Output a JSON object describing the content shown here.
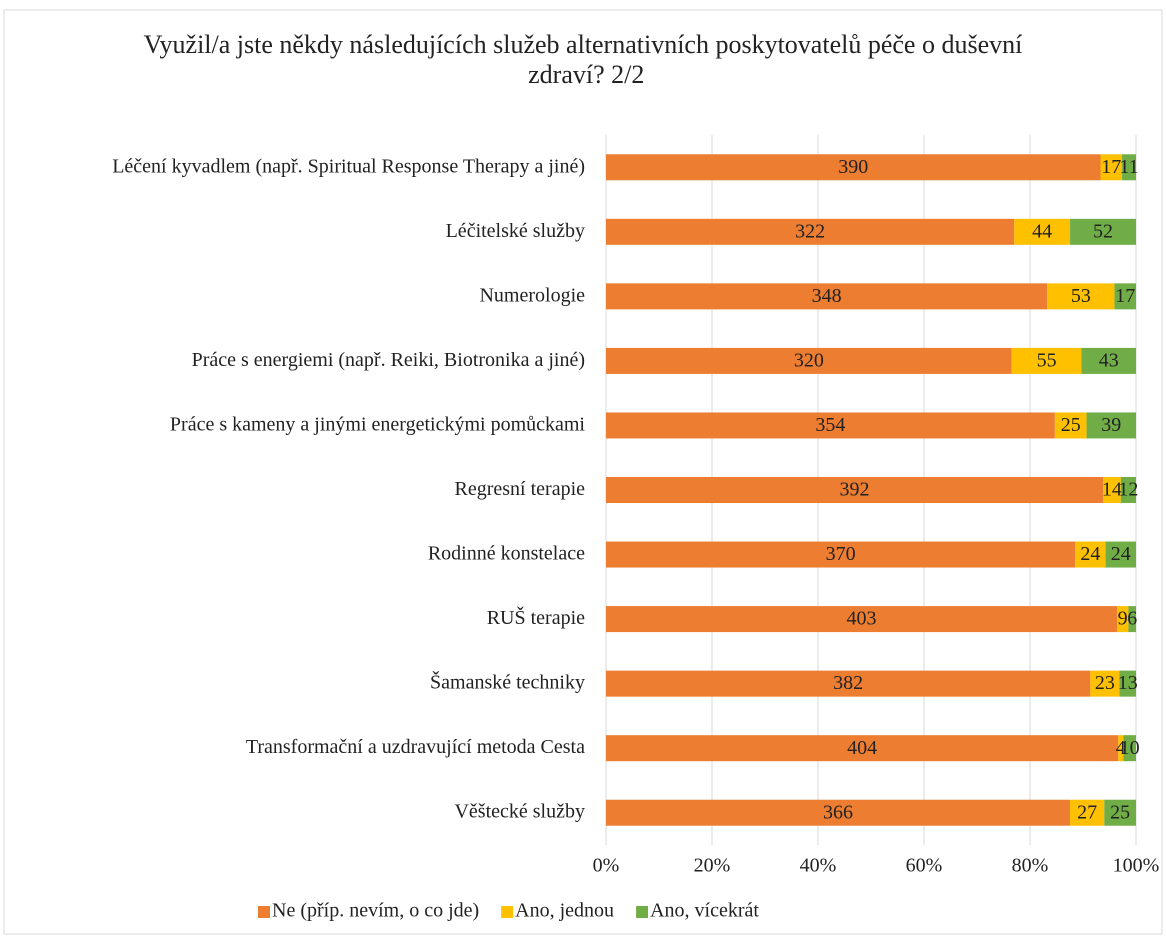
{
  "chart_data": {
    "type": "bar",
    "orientation": "horizontal",
    "stacked": "percent",
    "title": "Využil/a jste někdy následujících služeb alternativních poskytovatelů péče o duševní zdraví? 2/2",
    "categories": [
      "Léčení kyvadlem (např. Spiritual Response Therapy a jiné)",
      "Léčitelské služby",
      "Numerologie",
      "Práce s energiemi (např. Reiki, Biotronika a jiné)",
      "Práce s kameny a jinými energetickými pomůckami",
      "Regresní terapie",
      "Rodinné konstelace",
      "RUŠ terapie",
      "Šamanské techniky",
      "Transformační a uzdravující metoda Cesta",
      "Věštecké služby"
    ],
    "series": [
      {
        "name": "Ne (příp. nevím, o co jde)",
        "color": "#ed7d31",
        "values": [
          390,
          322,
          348,
          320,
          354,
          392,
          370,
          403,
          382,
          404,
          366
        ]
      },
      {
        "name": "Ano, jednou",
        "color": "#ffc000",
        "values": [
          17,
          44,
          53,
          55,
          25,
          14,
          24,
          9,
          23,
          4,
          27
        ]
      },
      {
        "name": "Ano, vícekrát",
        "color": "#70ad47",
        "values": [
          11,
          52,
          17,
          43,
          39,
          12,
          24,
          6,
          13,
          10,
          25
        ]
      }
    ],
    "xlim": [
      0,
      100
    ],
    "xticks": [
      {
        "value": 0,
        "label": "0%"
      },
      {
        "value": 20,
        "label": "20%"
      },
      {
        "value": 40,
        "label": "40%"
      },
      {
        "value": 60,
        "label": "60%"
      },
      {
        "value": 80,
        "label": "80%"
      },
      {
        "value": 100,
        "label": "100%"
      }
    ],
    "grid": true,
    "legend": "bottom"
  }
}
